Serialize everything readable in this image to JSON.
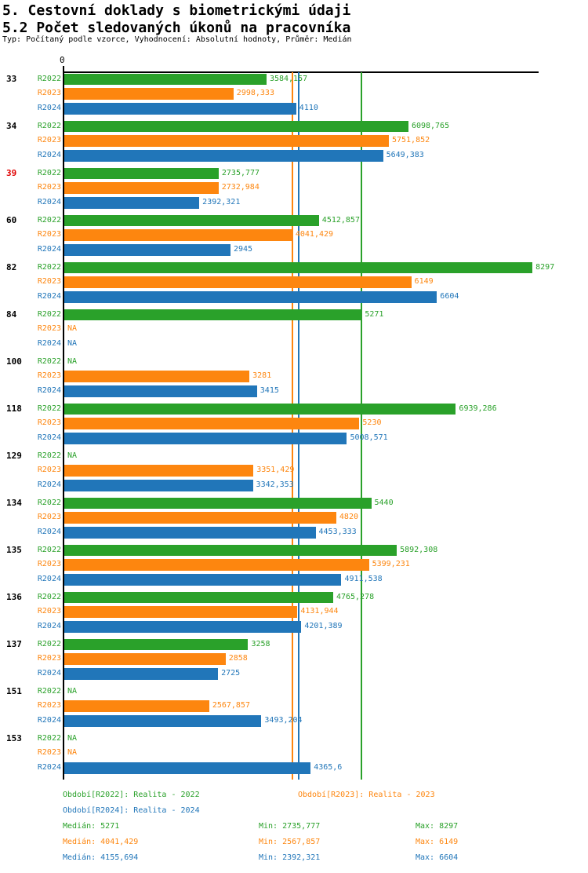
{
  "title": "5. Cestovní doklady s biometrickými údaji",
  "subtitle": "5.2 Počet sledovaných úkonů na pracovníka",
  "meta": "Typ: Počítaný podle vzorce, Vyhodnocení: Absolutní hodnoty, Průměr: Medián",
  "colors": {
    "r2022": "#2aa12a",
    "r2023": "#fd860f",
    "r2024": "#2176b9",
    "highlight_id": "#e00000",
    "axis": "#000000"
  },
  "chart_data": {
    "type": "bar",
    "orientation": "horizontal",
    "title": "5.2 Počet sledovaných úkonů na pracovníka",
    "x_axis": {
      "zero_label": "0",
      "max": 8406,
      "gridlines": false
    },
    "na_label": "NA",
    "series": [
      {
        "name": "R2022",
        "color": "#2aa12a",
        "legend": "Období[R2022]: Realita - 2022",
        "median": 5271,
        "median_label": "Medián: 5271",
        "min_label": "Min: 2735,777",
        "max_label": "Max: 8297"
      },
      {
        "name": "R2023",
        "color": "#fd860f",
        "legend": "Období[R2023]: Realita - 2023",
        "median": 4041.429,
        "median_label": "Medián: 4041,429",
        "min_label": "Min: 2567,857",
        "max_label": "Max: 6149"
      },
      {
        "name": "R2024",
        "color": "#2176b9",
        "legend": "Období[R2024]: Realita - 2024",
        "median": 4155.694,
        "median_label": "Medián: 4155,694",
        "min_label": "Min: 2392,321",
        "max_label": "Max: 6604"
      }
    ],
    "groups": [
      {
        "id": "33",
        "highlight": false,
        "values": [
          3584.157,
          2998.333,
          4110
        ],
        "labels": [
          "3584,157",
          "2998,333",
          "4110"
        ]
      },
      {
        "id": "34",
        "highlight": false,
        "values": [
          6098.765,
          5751.852,
          5649.383
        ],
        "labels": [
          "6098,765",
          "5751,852",
          "5649,383"
        ]
      },
      {
        "id": "39",
        "highlight": true,
        "values": [
          2735.777,
          2732.984,
          2392.321
        ],
        "labels": [
          "2735,777",
          "2732,984",
          "2392,321"
        ]
      },
      {
        "id": "60",
        "highlight": false,
        "values": [
          4512.857,
          4041.429,
          2945
        ],
        "labels": [
          "4512,857",
          "4041,429",
          "2945"
        ]
      },
      {
        "id": "82",
        "highlight": false,
        "values": [
          8297,
          6149,
          6604
        ],
        "labels": [
          "8297",
          "6149",
          "6604"
        ]
      },
      {
        "id": "84",
        "highlight": false,
        "values": [
          5271,
          null,
          null
        ],
        "labels": [
          "5271",
          "NA",
          "NA"
        ]
      },
      {
        "id": "100",
        "highlight": false,
        "values": [
          null,
          3281,
          3415
        ],
        "labels": [
          "NA",
          "3281",
          "3415"
        ]
      },
      {
        "id": "118",
        "highlight": false,
        "values": [
          6939.286,
          5230,
          5008.571
        ],
        "labels": [
          "6939,286",
          "5230",
          "5008,571"
        ]
      },
      {
        "id": "129",
        "highlight": false,
        "values": [
          null,
          3351.429,
          3342.353
        ],
        "labels": [
          "NA",
          "3351,429",
          "3342,353"
        ]
      },
      {
        "id": "134",
        "highlight": false,
        "values": [
          5440,
          4820,
          4453.333
        ],
        "labels": [
          "5440",
          "4820",
          "4453,333"
        ]
      },
      {
        "id": "135",
        "highlight": false,
        "values": [
          5892.308,
          5399.231,
          4911.538
        ],
        "labels": [
          "5892,308",
          "5399,231",
          "4911,538"
        ]
      },
      {
        "id": "136",
        "highlight": false,
        "values": [
          4765.278,
          4131.944,
          4201.389
        ],
        "labels": [
          "4765,278",
          "4131,944",
          "4201,389"
        ]
      },
      {
        "id": "137",
        "highlight": false,
        "values": [
          3258,
          2858,
          2725
        ],
        "labels": [
          "3258",
          "2858",
          "2725"
        ]
      },
      {
        "id": "151",
        "highlight": false,
        "values": [
          null,
          2567.857,
          3493.204
        ],
        "labels": [
          "NA",
          "2567,857",
          "3493,204"
        ]
      },
      {
        "id": "153",
        "highlight": false,
        "values": [
          null,
          null,
          4365.6
        ],
        "labels": [
          "NA",
          "NA",
          "4365,6"
        ]
      }
    ]
  }
}
